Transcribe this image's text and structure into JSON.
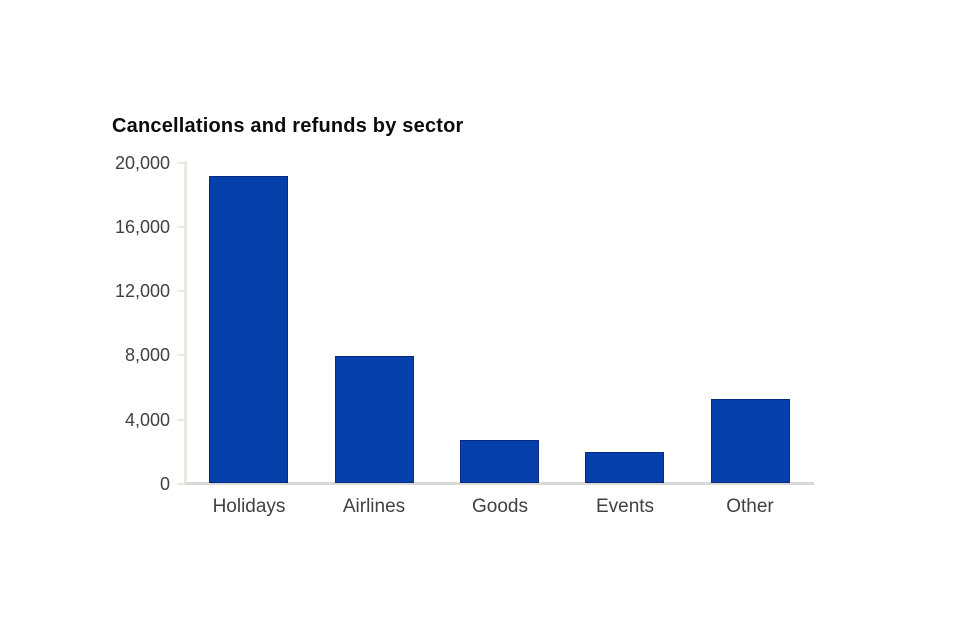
{
  "page": {
    "background_color": "#ffffff"
  },
  "chart_data": {
    "type": "bar",
    "title": "Cancellations and refunds by sector",
    "categories": [
      "Holidays",
      "Airlines",
      "Goods",
      "Events",
      "Other"
    ],
    "values": [
      19100,
      7900,
      2650,
      1900,
      5200
    ],
    "xlabel": "",
    "ylabel": "",
    "y_axis": {
      "tick_labels": [
        "20,000",
        "16,000",
        "12,000",
        "8,000",
        "4,000",
        "0"
      ],
      "tick_values": [
        20000,
        16000,
        12000,
        8000,
        4000,
        0
      ],
      "range": [
        0,
        20000
      ]
    },
    "grid": false,
    "legend": false,
    "colors": {
      "bar_fill": "#0641ab",
      "bar_border": "#0a2a80",
      "y_axis_line": "#ece9df",
      "y_tick_mark": "#ece9df",
      "x_axis_line": "#d9d9d9",
      "tick_label_text": "#414042",
      "category_label_text": "#414042",
      "title_text": "#0b0c0c"
    }
  }
}
